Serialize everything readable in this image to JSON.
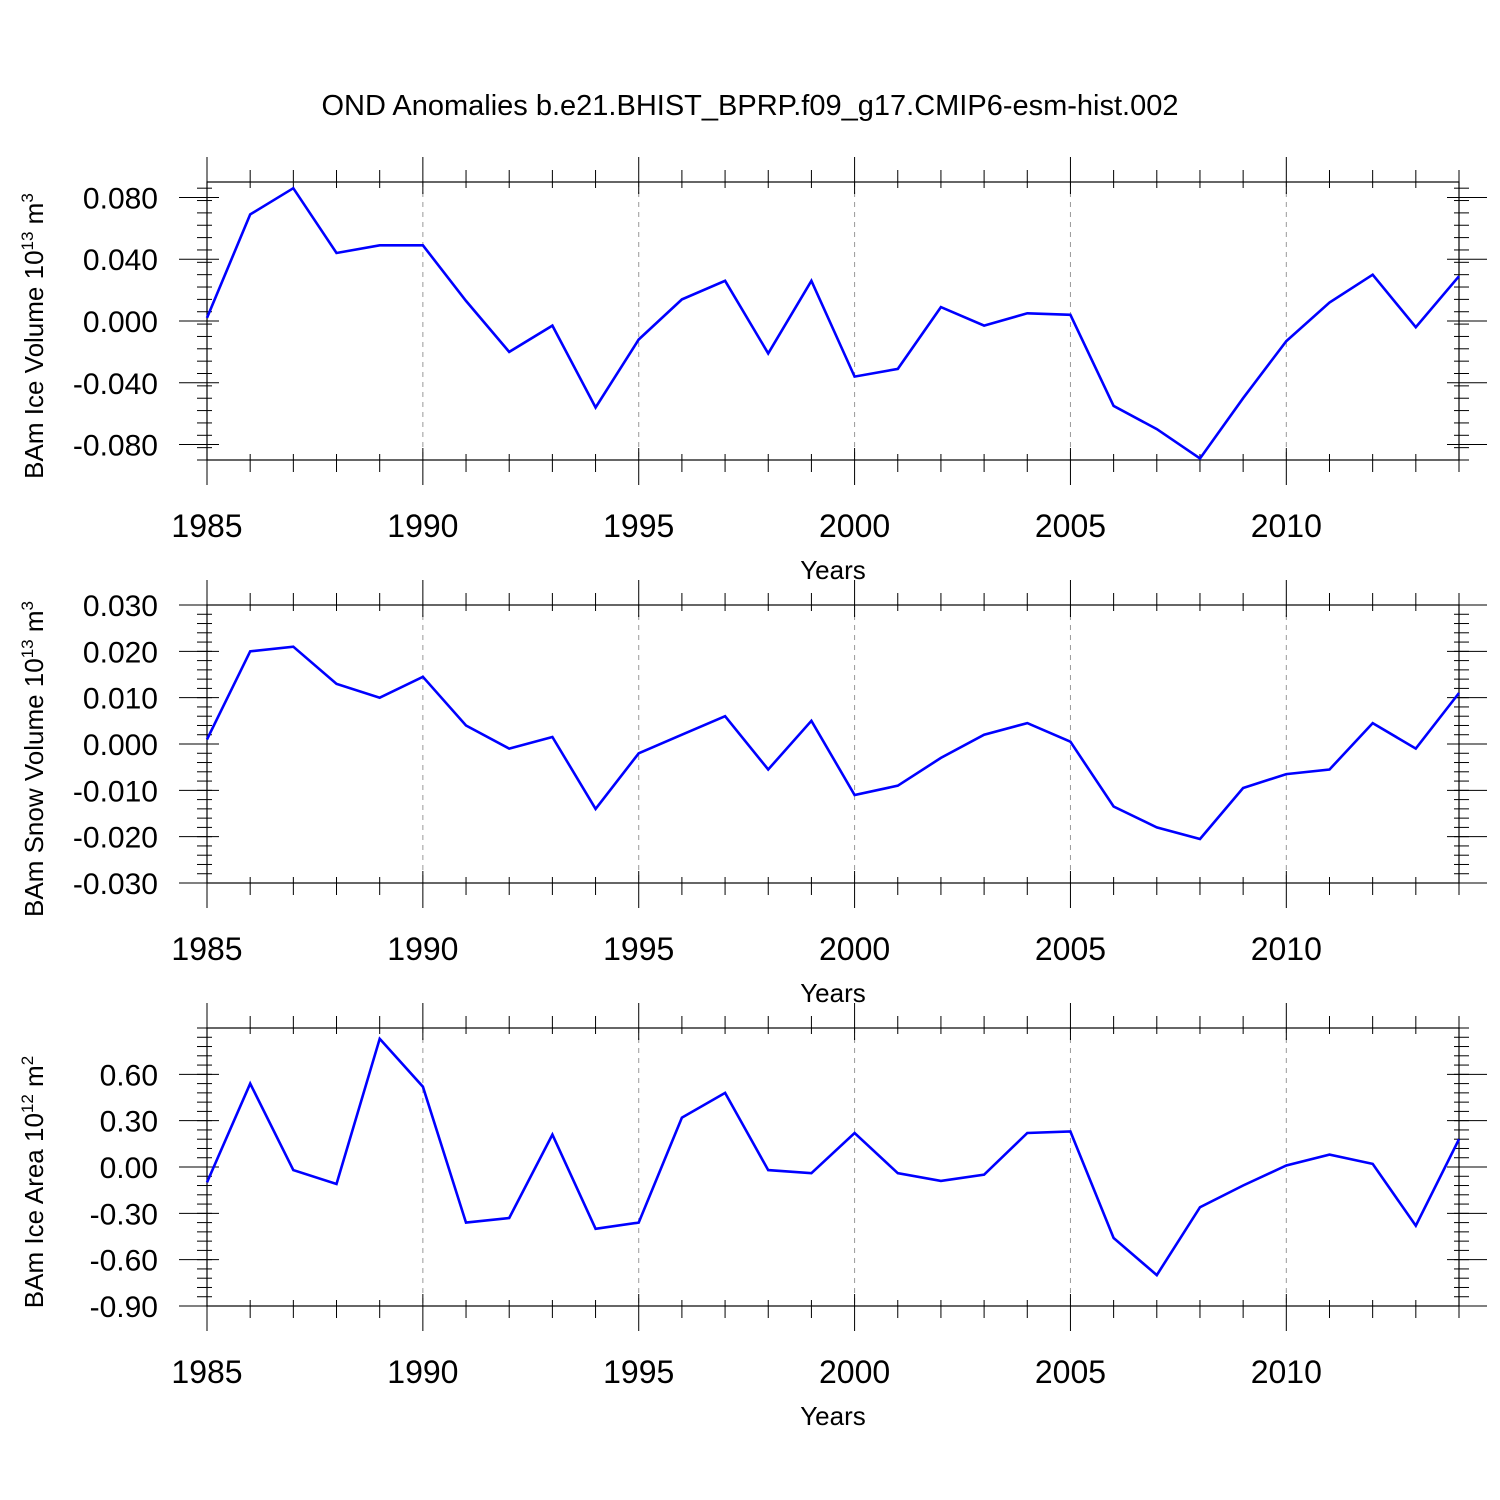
{
  "title": "OND Anomalies b.e21.BHIST_BPRP.f09_g17.CMIP6-esm-hist.002",
  "line_color": "#0000ff",
  "grid_color": "#999999",
  "chart_data": [
    {
      "type": "line",
      "ylabel": "BAm Ice Volume 10",
      "ylabel_exp": "13",
      "ylabel_unit": " m",
      "ylabel_unit_exp": "3",
      "xlabel": "Years",
      "xlim": [
        1985,
        2014
      ],
      "ylim": [
        -0.09,
        0.09
      ],
      "yticks": [
        0.08,
        0.04,
        0.0,
        -0.04,
        -0.08
      ],
      "ytick_labels": [
        "0.080",
        "0.040",
        "0.000",
        "-0.040",
        "-0.080"
      ],
      "yminor_step": 0.008,
      "xticks": [
        1985,
        1990,
        1995,
        2000,
        2005,
        2010
      ],
      "xtick_labels": [
        "1985",
        "1990",
        "1995",
        "2000",
        "2005",
        "2010"
      ],
      "grid": "vertical dashed at major x ticks",
      "series": [
        {
          "x": [
            1985,
            1986,
            1987,
            1988,
            1989,
            1990,
            1991,
            1992,
            1993,
            1994,
            1995,
            1996,
            1997,
            1998,
            1999,
            2000,
            2001,
            2002,
            2003,
            2004,
            2005,
            2006,
            2007,
            2008,
            2009,
            2010,
            2011,
            2012,
            2013,
            2014
          ],
          "values": [
            0.002,
            0.069,
            0.086,
            0.044,
            0.049,
            0.049,
            0.013,
            -0.02,
            -0.003,
            -0.056,
            -0.012,
            0.014,
            0.026,
            -0.021,
            0.026,
            -0.036,
            -0.031,
            0.009,
            -0.003,
            0.005,
            0.004,
            -0.055,
            -0.07,
            -0.089,
            -0.05,
            -0.013,
            0.012,
            0.03,
            -0.004,
            0.029
          ]
        }
      ]
    },
    {
      "type": "line",
      "ylabel": "BAm Snow Volume 10",
      "ylabel_exp": "13",
      "ylabel_unit": " m",
      "ylabel_unit_exp": "3",
      "xlabel": "Years",
      "xlim": [
        1985,
        2014
      ],
      "ylim": [
        -0.03,
        0.03
      ],
      "yticks": [
        0.03,
        0.02,
        0.01,
        0.0,
        -0.01,
        -0.02,
        -0.03
      ],
      "ytick_labels": [
        "0.030",
        "0.020",
        "0.010",
        "0.000",
        "-0.010",
        "-0.020",
        "-0.030"
      ],
      "yminor_step": 0.002,
      "xticks": [
        1985,
        1990,
        1995,
        2000,
        2005,
        2010
      ],
      "xtick_labels": [
        "1985",
        "1990",
        "1995",
        "2000",
        "2005",
        "2010"
      ],
      "grid": "vertical dashed at major x ticks",
      "series": [
        {
          "x": [
            1985,
            1986,
            1987,
            1988,
            1989,
            1990,
            1991,
            1992,
            1993,
            1994,
            1995,
            1996,
            1997,
            1998,
            1999,
            2000,
            2001,
            2002,
            2003,
            2004,
            2005,
            2006,
            2007,
            2008,
            2009,
            2010,
            2011,
            2012,
            2013,
            2014
          ],
          "values": [
            0.001,
            0.02,
            0.021,
            0.013,
            0.01,
            0.0145,
            0.004,
            -0.001,
            0.0015,
            -0.014,
            -0.002,
            0.002,
            0.006,
            -0.0055,
            0.005,
            -0.011,
            -0.009,
            -0.003,
            0.002,
            0.0045,
            0.0005,
            -0.0135,
            -0.018,
            -0.0205,
            -0.0095,
            -0.0065,
            -0.0055,
            0.0045,
            -0.001,
            0.011
          ]
        }
      ]
    },
    {
      "type": "line",
      "ylabel": "BAm Ice Area 10",
      "ylabel_exp": "12",
      "ylabel_unit": " m",
      "ylabel_unit_exp": "2",
      "xlabel": "Years",
      "xlim": [
        1985,
        2014
      ],
      "ylim": [
        -0.9,
        0.9
      ],
      "yticks": [
        0.6,
        0.3,
        0.0,
        -0.3,
        -0.6,
        -0.9
      ],
      "ytick_labels": [
        "0.60",
        "0.30",
        "0.00",
        "-0.30",
        "-0.60",
        "-0.90"
      ],
      "yminor_step": 0.06,
      "xticks": [
        1985,
        1990,
        1995,
        2000,
        2005,
        2010
      ],
      "xtick_labels": [
        "1985",
        "1990",
        "1995",
        "2000",
        "2005",
        "2010"
      ],
      "grid": "vertical dashed at major x ticks",
      "series": [
        {
          "x": [
            1985,
            1986,
            1987,
            1988,
            1989,
            1990,
            1991,
            1992,
            1993,
            1994,
            1995,
            1996,
            1997,
            1998,
            1999,
            2000,
            2001,
            2002,
            2003,
            2004,
            2005,
            2006,
            2007,
            2008,
            2009,
            2010,
            2011,
            2012,
            2013,
            2014
          ],
          "values": [
            -0.1,
            0.54,
            -0.02,
            -0.11,
            0.83,
            0.52,
            -0.36,
            -0.33,
            0.21,
            -0.4,
            -0.36,
            0.32,
            0.48,
            -0.02,
            -0.04,
            0.22,
            -0.04,
            -0.09,
            -0.05,
            0.22,
            0.23,
            -0.46,
            -0.7,
            -0.26,
            -0.12,
            0.01,
            0.08,
            0.02,
            -0.38,
            0.18
          ]
        }
      ]
    }
  ]
}
